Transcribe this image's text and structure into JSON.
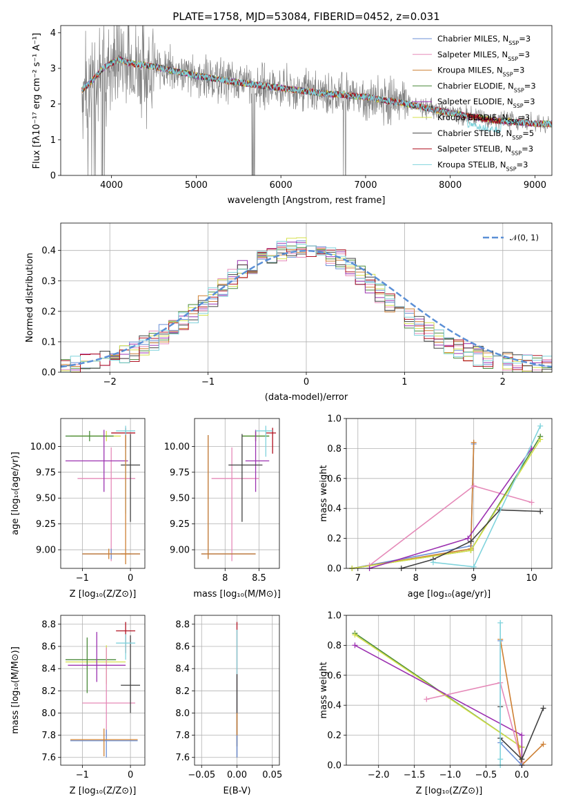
{
  "chart_data": [
    {
      "id": "spectrum",
      "type": "line",
      "title": "PLATE=1758, MJD=53084, FIBERID=0452, z=0.031",
      "xlabel": "wavelength [Angstrom, rest frame]",
      "ylabel": "Flux [fλ10⁻¹⁷ erg cm⁻² s⁻¹ A⁻¹]",
      "xlim": [
        3400,
        9200
      ],
      "ylim": [
        0,
        4.2
      ],
      "xticks": [
        4000,
        5000,
        6000,
        7000,
        8000,
        9000
      ],
      "yticks": [
        0,
        1,
        2,
        3,
        4
      ],
      "grid": false,
      "legend_position": "top-right",
      "data_color": "#808080",
      "model_continuum": {
        "x": [
          3650,
          3750,
          3900,
          4000,
          4100,
          4200,
          4500,
          5000,
          5500,
          6000,
          6500,
          7000,
          7500,
          8000,
          8500,
          9000
        ],
        "y": [
          2.4,
          2.6,
          3.0,
          3.15,
          3.25,
          3.15,
          3.05,
          2.8,
          2.6,
          2.45,
          2.3,
          2.2,
          2.0,
          1.75,
          1.55,
          1.45
        ]
      },
      "series": [
        {
          "name": "Chabrier MILES, N",
          "sub": "SSP",
          "suffix": "=3",
          "color": "#6a8fd6"
        },
        {
          "name": "Salpeter MILES, N",
          "sub": "SSP",
          "suffix": "=3",
          "color": "#e589b8"
        },
        {
          "name": "Kroupa MILES, N",
          "sub": "SSP",
          "suffix": "=3",
          "color": "#cd7f32"
        },
        {
          "name": "Chabrier ELODIE, N",
          "sub": "SSP",
          "suffix": "=3",
          "color": "#4a8a3a"
        },
        {
          "name": "Salpeter ELODIE, N",
          "sub": "SSP",
          "suffix": "=3",
          "color": "#9b30b0"
        },
        {
          "name": "Kroupa ELODIE, N",
          "sub": "SSP",
          "suffix": "=3",
          "color": "#d4e04a"
        },
        {
          "name": "Chabrier STELIB, N",
          "sub": "SSP",
          "suffix": "=5",
          "color": "#404040"
        },
        {
          "name": "Salpeter STELIB, N",
          "sub": "SSP",
          "suffix": "=3",
          "color": "#b01020"
        },
        {
          "name": "Kroupa STELIB, N",
          "sub": "SSP",
          "suffix": "=3",
          "color": "#7fd3dc"
        }
      ]
    },
    {
      "id": "residuals",
      "type": "line",
      "title": "",
      "xlabel": "(data-model)/error",
      "ylabel": "Normed distribution",
      "xlim": [
        -2.5,
        2.5
      ],
      "ylim": [
        0,
        0.49
      ],
      "xticks": [
        -2,
        -1,
        0,
        1,
        2
      ],
      "yticks": [
        0.0,
        0.1,
        0.2,
        0.3,
        0.4
      ],
      "grid": true,
      "legend_position": "top-right",
      "reference": {
        "name": "𝒩(0, 1)",
        "color": "#5a8fd6",
        "style": "dashed"
      },
      "bin_width": 0.1,
      "bin_start": -2.5,
      "base_hist": [
        0.017,
        0.02,
        0.027,
        0.031,
        0.038,
        0.047,
        0.058,
        0.07,
        0.085,
        0.102,
        0.122,
        0.145,
        0.17,
        0.195,
        0.222,
        0.25,
        0.28,
        0.306,
        0.332,
        0.355,
        0.375,
        0.39,
        0.4,
        0.407,
        0.41,
        0.407,
        0.398,
        0.385,
        0.368,
        0.345,
        0.318,
        0.29,
        0.262,
        0.232,
        0.205,
        0.178,
        0.152,
        0.128,
        0.108,
        0.09,
        0.075,
        0.062,
        0.052,
        0.044,
        0.037,
        0.031,
        0.026,
        0.022,
        0.02,
        0.018
      ]
    },
    {
      "id": "age_vs_Z",
      "type": "scatter",
      "xlabel": "Z [log₁₀(Z/Z⊙)]",
      "ylabel": "age  [log₁₀(age/yr)]",
      "xlim": [
        -1.45,
        0.3
      ],
      "ylim": [
        8.82,
        10.27
      ],
      "xticks": [
        -1,
        0
      ],
      "yticks": [
        9.0,
        9.25,
        9.5,
        9.75,
        10.0
      ],
      "grid": true,
      "points": [
        {
          "x": -0.5,
          "y": 10.1,
          "xerr": [
            0.75,
            0.3
          ],
          "yerr": [
            0.05,
            0.05
          ],
          "color": "#d4e04a"
        },
        {
          "x": -0.85,
          "y": 10.1,
          "xerr": [
            0.5,
            0.5
          ],
          "yerr": [
            0.05,
            0.05
          ],
          "color": "#4a8a3a"
        },
        {
          "x": -0.4,
          "y": 9.69,
          "xerr": [
            0.7,
            0.5
          ],
          "yerr": [
            0.8,
            0.3
          ],
          "color": "#e589b8"
        },
        {
          "x": -0.55,
          "y": 9.86,
          "xerr": [
            0.8,
            0.5
          ],
          "yerr": [
            0.3,
            0.3
          ],
          "color": "#9b30b0"
        },
        {
          "x": 0.0,
          "y": 9.82,
          "xerr": [
            0.2,
            0.2
          ],
          "yerr": [
            0.55,
            0.3
          ],
          "color": "#404040"
        },
        {
          "x": -0.1,
          "y": 10.13,
          "xerr": [
            0.3,
            0.2
          ],
          "yerr": [
            0.15,
            0.05
          ],
          "color": "#b01020"
        },
        {
          "x": -0.1,
          "y": 10.15,
          "xerr": [
            0.2,
            0.2
          ],
          "yerr": [
            0.8,
            0.05
          ],
          "color": "#7fd3dc"
        },
        {
          "x": -0.4,
          "y": 8.96,
          "xerr": [
            0.6,
            0.6
          ],
          "yerr": [
            0.05,
            0.05
          ],
          "color": "#6a8fd6"
        },
        {
          "x": -0.45,
          "y": 8.96,
          "xerr": [
            0.55,
            0.65
          ],
          "yerr": [
            0.05,
            0.05
          ],
          "color": "#cd7f32"
        },
        {
          "x": -0.1,
          "y": 8.96,
          "xerr": [
            0.1,
            0.1
          ],
          "yerr": [
            0.1,
            1.15
          ],
          "color": "#cd7f32"
        }
      ]
    },
    {
      "id": "age_vs_mass",
      "type": "scatter",
      "xlabel": "mass [log₁₀(M/M⊙)]",
      "ylabel": "",
      "xlim": [
        7.55,
        8.8
      ],
      "ylim": [
        8.82,
        10.27
      ],
      "xticks": [
        8.0,
        8.5
      ],
      "yticks": [
        9.0,
        9.25,
        9.5,
        9.75,
        10.0
      ],
      "grid": true,
      "points": [
        {
          "x": 8.45,
          "y": 10.1,
          "xerr": [
            0.2,
            0.2
          ],
          "yerr": [
            0.05,
            0.05
          ],
          "color": "#d4e04a"
        },
        {
          "x": 8.45,
          "y": 10.1,
          "xerr": [
            0.2,
            0.2
          ],
          "yerr": [
            0.05,
            0.05
          ],
          "color": "#4a8a3a"
        },
        {
          "x": 8.1,
          "y": 9.69,
          "xerr": [
            0.3,
            0.4
          ],
          "yerr": [
            0.8,
            0.3
          ],
          "color": "#e589b8"
        },
        {
          "x": 8.45,
          "y": 9.86,
          "xerr": [
            0.15,
            0.2
          ],
          "yerr": [
            0.3,
            0.3
          ],
          "color": "#9b30b0"
        },
        {
          "x": 8.25,
          "y": 9.82,
          "xerr": [
            0.2,
            0.3
          ],
          "yerr": [
            0.55,
            0.3
          ],
          "color": "#404040"
        },
        {
          "x": 8.7,
          "y": 10.13,
          "xerr": [
            0.1,
            0.05
          ],
          "yerr": [
            0.2,
            0.05
          ],
          "color": "#b01020"
        },
        {
          "x": 8.6,
          "y": 10.15,
          "xerr": [
            0.15,
            0.1
          ],
          "yerr": [
            0.25,
            0.05
          ],
          "color": "#7fd3dc"
        },
        {
          "x": 7.75,
          "y": 8.96,
          "xerr": [
            0.1,
            0.7
          ],
          "yerr": [
            0.05,
            1.15
          ],
          "color": "#6a8fd6"
        },
        {
          "x": 7.75,
          "y": 8.96,
          "xerr": [
            0.1,
            0.7
          ],
          "yerr": [
            0.05,
            1.15
          ],
          "color": "#cd7f32"
        }
      ]
    },
    {
      "id": "weight_vs_age",
      "type": "line",
      "xlabel": "age  [log₁₀(age/yr)]",
      "ylabel": "mass weight",
      "xlim": [
        6.8,
        10.35
      ],
      "ylim": [
        0,
        1.0
      ],
      "xticks": [
        7,
        8,
        9,
        10
      ],
      "yticks": [
        0.0,
        0.2,
        0.4,
        0.6,
        0.8,
        1.0
      ],
      "grid": true,
      "series": [
        {
          "color": "#6a8fd6",
          "x": [
            6.9,
            8.95,
            9.0
          ],
          "y": [
            0.0,
            0.15,
            0.83
          ]
        },
        {
          "color": "#cd7f32",
          "x": [
            6.9,
            8.95,
            9.0
          ],
          "y": [
            0.0,
            0.13,
            0.84
          ]
        },
        {
          "color": "#e589b8",
          "x": [
            7.2,
            9.0,
            10.0
          ],
          "y": [
            0.02,
            0.55,
            0.44
          ]
        },
        {
          "color": "#4a8a3a",
          "x": [
            6.9,
            8.95,
            10.15
          ],
          "y": [
            0.0,
            0.12,
            0.88
          ]
        },
        {
          "color": "#d4e04a",
          "x": [
            6.9,
            8.95,
            10.15
          ],
          "y": [
            0.0,
            0.12,
            0.86
          ]
        },
        {
          "color": "#9b30b0",
          "x": [
            7.2,
            8.9,
            10.0
          ],
          "y": [
            0.0,
            0.2,
            0.8
          ]
        },
        {
          "color": "#404040",
          "x": [
            7.75,
            8.3,
            8.95,
            9.45,
            10.15
          ],
          "y": [
            0.0,
            0.06,
            0.18,
            0.39,
            0.38
          ]
        },
        {
          "color": "#7fd3dc",
          "x": [
            8.3,
            9.0,
            10.15
          ],
          "y": [
            0.04,
            0.01,
            0.95
          ]
        }
      ]
    },
    {
      "id": "mass_vs_Z",
      "type": "scatter",
      "xlabel": "Z [log₁₀(Z/Z⊙)]",
      "ylabel": "mass [log₁₀(M/M⊙)]",
      "xlim": [
        -1.45,
        0.3
      ],
      "ylim": [
        7.53,
        8.88
      ],
      "xticks": [
        -1,
        0
      ],
      "yticks": [
        7.6,
        7.8,
        8.0,
        8.2,
        8.4,
        8.6,
        8.8
      ],
      "grid": true,
      "points": [
        {
          "x": -0.5,
          "y": 8.46,
          "xerr": [
            0.85,
            0.4
          ],
          "yerr": [
            0.2,
            0.15
          ],
          "color": "#d4e04a"
        },
        {
          "x": -0.9,
          "y": 8.48,
          "xerr": [
            0.45,
            0.6
          ],
          "yerr": [
            0.3,
            0.2
          ],
          "color": "#4a8a3a"
        },
        {
          "x": -0.5,
          "y": 8.09,
          "xerr": [
            0.5,
            0.6
          ],
          "yerr": [
            0.3,
            0.5
          ],
          "color": "#e589b8"
        },
        {
          "x": -0.7,
          "y": 8.43,
          "xerr": [
            0.6,
            0.6
          ],
          "yerr": [
            0.15,
            0.3
          ],
          "color": "#9b30b0"
        },
        {
          "x": 0.0,
          "y": 8.25,
          "xerr": [
            0.2,
            0.2
          ],
          "yerr": [
            0.25,
            0.45
          ],
          "color": "#404040"
        },
        {
          "x": -0.1,
          "y": 8.74,
          "xerr": [
            0.2,
            0.2
          ],
          "yerr": [
            0.2,
            0.08
          ],
          "color": "#b01020"
        },
        {
          "x": -0.1,
          "y": 8.63,
          "xerr": [
            0.2,
            0.2
          ],
          "yerr": [
            0.15,
            0.08
          ],
          "color": "#7fd3dc"
        },
        {
          "x": -0.5,
          "y": 7.75,
          "xerr": [
            0.75,
            0.65
          ],
          "yerr": [
            0.15,
            0.1
          ],
          "color": "#6a8fd6"
        },
        {
          "x": -0.55,
          "y": 7.76,
          "xerr": [
            0.7,
            0.7
          ],
          "yerr": [
            0.15,
            0.1
          ],
          "color": "#cd7f32"
        }
      ]
    },
    {
      "id": "mass_vs_EBV",
      "type": "scatter",
      "xlabel": "E(B-V)",
      "ylabel": "",
      "xlim": [
        -0.06,
        0.06
      ],
      "ylim": [
        7.53,
        8.88
      ],
      "xticks": [
        -0.05,
        0.0,
        0.05
      ],
      "xticklabels": [
        "−0.05",
        "0.00",
        "0.05"
      ],
      "yticks": [
        7.6,
        7.8,
        8.0,
        8.2,
        8.4,
        8.6,
        8.8
      ],
      "grid": true,
      "vlines": [
        {
          "x": 0.0,
          "y0": 7.6,
          "y1": 8.82,
          "color": "#b01020"
        },
        {
          "x": 0.0,
          "y0": 7.6,
          "y1": 8.75,
          "color": "#7fd3dc"
        },
        {
          "x": 0.0,
          "y0": 7.7,
          "y1": 8.35,
          "color": "#404040"
        },
        {
          "x": 0.0,
          "y0": 7.7,
          "y1": 8.0,
          "color": "#cd7f32"
        },
        {
          "x": 0.0,
          "y0": 7.6,
          "y1": 7.8,
          "color": "#6a8fd6"
        }
      ]
    },
    {
      "id": "weight_vs_Z",
      "type": "line",
      "xlabel": "Z [log₁₀(Z/Z⊙)]",
      "ylabel": "mass weight",
      "xlim": [
        -2.45,
        0.42
      ],
      "ylim": [
        0,
        1.0
      ],
      "xticks": [
        -2.0,
        -1.5,
        -1.0,
        -0.5,
        0.0
      ],
      "xticklabels": [
        "−2.0",
        "−1.5",
        "−1.0",
        "−0.5",
        "0.0"
      ],
      "yticks": [
        0.0,
        0.2,
        0.4,
        0.6,
        0.8,
        1.0
      ],
      "grid": true,
      "series": [
        {
          "color": "#4a8a3a",
          "x": [
            -2.33,
            0.0,
            0.0
          ],
          "y": [
            0.88,
            0.12,
            0.0
          ]
        },
        {
          "color": "#d4e04a",
          "x": [
            -2.33,
            0.0,
            0.0
          ],
          "y": [
            0.87,
            0.12,
            0.0
          ]
        },
        {
          "color": "#9b30b0",
          "x": [
            -2.33,
            0.0,
            0.0
          ],
          "y": [
            0.8,
            0.2,
            0.0
          ]
        },
        {
          "color": "#e589b8",
          "x": [
            -1.33,
            -0.3,
            0.0
          ],
          "y": [
            0.44,
            0.55,
            0.02
          ]
        },
        {
          "color": "#cd7f32",
          "x": [
            -0.3,
            0.0,
            0.3
          ],
          "y": [
            0.84,
            0.0,
            0.14
          ]
        },
        {
          "color": "#6a8fd6",
          "x": [
            -0.3,
            -0.3,
            0.0
          ],
          "y": [
            0.83,
            0.15,
            0.0
          ]
        },
        {
          "color": "#404040",
          "x": [
            -0.3,
            -0.3,
            0.0,
            0.3
          ],
          "y": [
            0.39,
            0.18,
            0.04,
            0.38
          ]
        },
        {
          "color": "#7fd3dc",
          "x": [
            -0.3,
            -0.3,
            -0.3
          ],
          "y": [
            0.95,
            0.04,
            0.0
          ]
        }
      ]
    }
  ]
}
